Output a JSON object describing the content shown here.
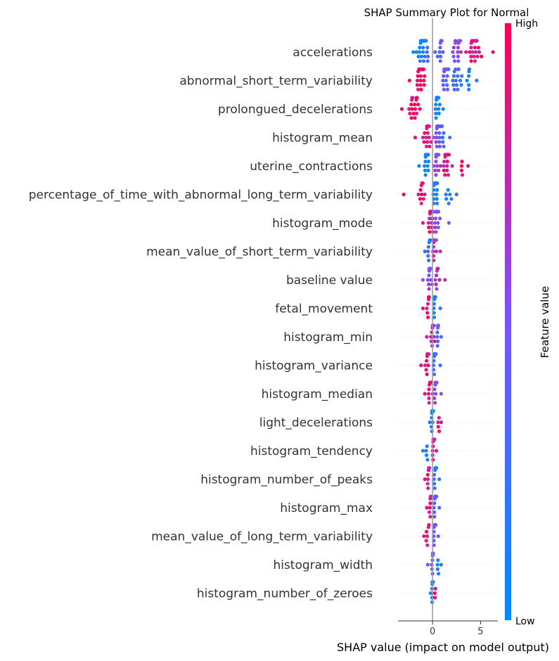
{
  "chart_data": {
    "type": "scatter",
    "subtype": "shap-beeswarm",
    "title": "SHAP Summary Plot for Normal",
    "xlabel": "SHAP value (impact on model output)",
    "xlim": [
      -3.6,
      6.8
    ],
    "xticks": [
      0,
      5
    ],
    "tick_labels": [
      "0",
      "5"
    ],
    "zero_line": true,
    "grid": false,
    "colorbar": {
      "title": "Feature value",
      "high_label": "High",
      "low_label": "Low",
      "low_color": "#008bfb",
      "mid_color": "#7c52ff",
      "high_color": "#ff0052"
    },
    "features": [
      {
        "name": "accelerations",
        "min": -2.0,
        "max": 6.3,
        "clusters": [
          [
            -1.2,
            1,
            0.05,
            22
          ],
          [
            -0.7,
            0.6,
            0.2,
            10
          ],
          [
            0.8,
            0.7,
            0.35,
            10
          ],
          [
            2.5,
            1.0,
            0.55,
            14
          ],
          [
            4.3,
            1.2,
            0.9,
            26
          ]
        ]
      },
      {
        "name": "abnormal_short_term_variability",
        "min": -2.4,
        "max": 4.6,
        "clusters": [
          [
            -1.2,
            0.9,
            0.95,
            26
          ],
          [
            1.3,
            0.7,
            0.4,
            20
          ],
          [
            2.5,
            0.8,
            0.25,
            16
          ],
          [
            3.8,
            0.6,
            0.15,
            6
          ]
        ]
      },
      {
        "name": "prolongued_decelerations",
        "min": -3.2,
        "max": 1.1,
        "clusters": [
          [
            -1.8,
            1.0,
            0.95,
            18
          ],
          [
            0.5,
            0.35,
            0.05,
            32
          ]
        ]
      },
      {
        "name": "histogram_mean",
        "min": -1.8,
        "max": 1.8,
        "clusters": [
          [
            -0.6,
            0.8,
            0.9,
            18
          ],
          [
            0.6,
            0.6,
            0.5,
            22
          ],
          [
            1.0,
            0.5,
            0.25,
            12
          ]
        ]
      },
      {
        "name": "uterine_contractions",
        "min": -1.4,
        "max": 3.7,
        "clusters": [
          [
            -0.6,
            0.5,
            0.05,
            20
          ],
          [
            0.4,
            0.4,
            0.55,
            18
          ],
          [
            1.5,
            0.9,
            0.85,
            20
          ],
          [
            3.1,
            0.3,
            0.95,
            4
          ]
        ]
      },
      {
        "name": "percentage_of_time_with_abnormal_long_term_variability",
        "min": -3.0,
        "max": 2.5,
        "clusters": [
          [
            -1.2,
            0.8,
            0.95,
            12
          ],
          [
            0.3,
            0.4,
            0.15,
            30
          ],
          [
            1.6,
            0.6,
            0.1,
            6
          ]
        ]
      },
      {
        "name": "histogram_mode",
        "min": -1.0,
        "max": 1.7,
        "clusters": [
          [
            -0.2,
            0.5,
            0.85,
            20
          ],
          [
            0.5,
            0.5,
            0.5,
            22
          ]
        ]
      },
      {
        "name": "mean_value_of_short_term_variability",
        "min": -0.8,
        "max": 0.8,
        "clusters": [
          [
            -0.4,
            0.3,
            0.2,
            8
          ],
          [
            0.2,
            0.3,
            0.7,
            16
          ]
        ]
      },
      {
        "name": "baseline value",
        "min": -1.0,
        "max": 1.3,
        "clusters": [
          [
            -0.3,
            0.4,
            0.55,
            16
          ],
          [
            0.5,
            0.4,
            0.7,
            10
          ]
        ]
      },
      {
        "name": "fetal_movement",
        "min": -1.0,
        "max": 0.8,
        "clusters": [
          [
            -0.5,
            0.3,
            0.9,
            8
          ],
          [
            0.2,
            0.3,
            0.1,
            22
          ]
        ]
      },
      {
        "name": "histogram_min",
        "min": -0.6,
        "max": 0.9,
        "clusters": [
          [
            0.0,
            0.3,
            0.75,
            16
          ],
          [
            0.5,
            0.3,
            0.3,
            8
          ]
        ]
      },
      {
        "name": "histogram_variance",
        "min": -1.2,
        "max": 0.8,
        "clusters": [
          [
            -0.6,
            0.4,
            0.9,
            10
          ],
          [
            0.2,
            0.3,
            0.2,
            16
          ]
        ]
      },
      {
        "name": "histogram_median",
        "min": -0.8,
        "max": 0.9,
        "clusters": [
          [
            -0.3,
            0.4,
            0.9,
            12
          ],
          [
            0.3,
            0.3,
            0.55,
            14
          ]
        ]
      },
      {
        "name": "light_decelerations",
        "min": -0.3,
        "max": 0.9,
        "clusters": [
          [
            0.0,
            0.2,
            0.1,
            18
          ],
          [
            0.6,
            0.2,
            0.85,
            4
          ]
        ]
      },
      {
        "name": "histogram_tendency",
        "min": -1.0,
        "max": 0.4,
        "clusters": [
          [
            -0.6,
            0.3,
            0.1,
            4
          ],
          [
            0.1,
            0.2,
            0.85,
            20
          ]
        ]
      },
      {
        "name": "histogram_number_of_peaks",
        "min": -0.8,
        "max": 0.7,
        "clusters": [
          [
            -0.4,
            0.3,
            0.85,
            8
          ],
          [
            0.3,
            0.3,
            0.2,
            16
          ]
        ]
      },
      {
        "name": "histogram_max",
        "min": -0.6,
        "max": 0.7,
        "clusters": [
          [
            -0.2,
            0.3,
            0.9,
            8
          ],
          [
            0.3,
            0.3,
            0.3,
            14
          ]
        ]
      },
      {
        "name": "mean_value_of_long_term_variability",
        "min": -0.9,
        "max": 0.6,
        "clusters": [
          [
            -0.5,
            0.3,
            0.85,
            6
          ],
          [
            0.2,
            0.2,
            0.4,
            14
          ]
        ]
      },
      {
        "name": "histogram_width",
        "min": -0.5,
        "max": 0.9,
        "clusters": [
          [
            0.0,
            0.2,
            0.5,
            14
          ],
          [
            0.6,
            0.2,
            0.1,
            4
          ]
        ]
      },
      {
        "name": "histogram_number_of_zeroes",
        "min": -0.2,
        "max": 0.3,
        "clusters": [
          [
            0.0,
            0.1,
            0.1,
            12
          ],
          [
            0.2,
            0.1,
            0.9,
            2
          ]
        ]
      }
    ]
  }
}
